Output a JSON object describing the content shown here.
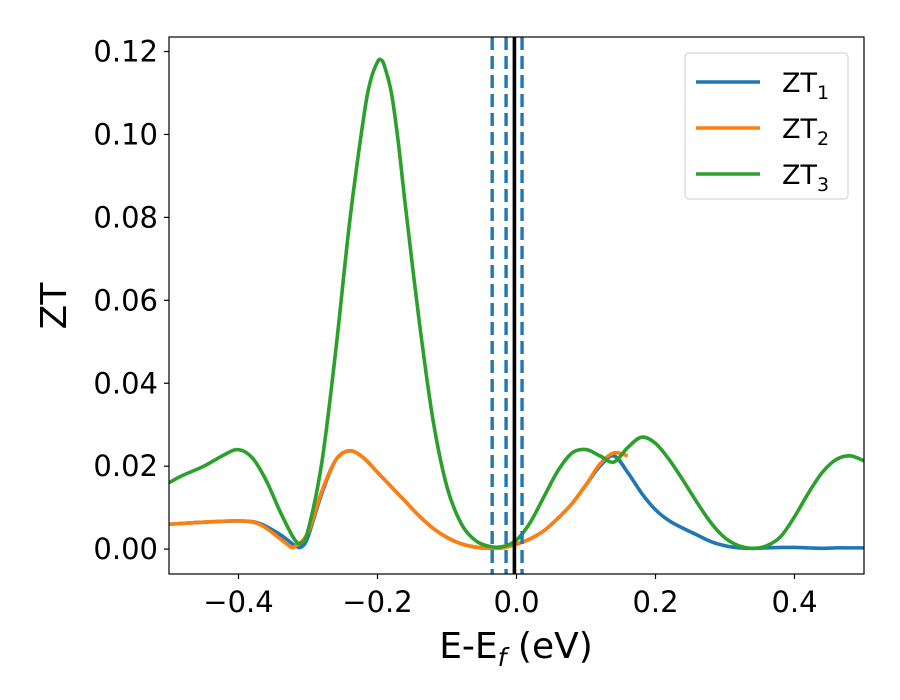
{
  "chart_data": {
    "type": "line",
    "xlabel": {
      "base": "E-E",
      "sub": "f",
      "unit": " (eV)"
    },
    "ylabel": "ZT",
    "xlim": [
      -0.5,
      0.5
    ],
    "ylim": [
      -0.006,
      0.1235
    ],
    "xticks": [
      -0.4,
      -0.2,
      0.0,
      0.2,
      0.4
    ],
    "xtick_labels": [
      "−0.4",
      "−0.2",
      "0.0",
      "0.2",
      "0.4"
    ],
    "yticks": [
      0.0,
      0.02,
      0.04,
      0.06,
      0.08,
      0.1,
      0.12
    ],
    "ytick_labels": [
      "0.00",
      "0.02",
      "0.04",
      "0.06",
      "0.08",
      "0.10",
      "0.12"
    ],
    "legend_position": "top-right",
    "grid": false,
    "series": [
      {
        "name": "ZT",
        "sub": "1",
        "color": "#1f77b4",
        "x": [
          -0.5,
          -0.45,
          -0.4,
          -0.37,
          -0.34,
          -0.32,
          -0.31,
          -0.3,
          -0.28,
          -0.26,
          -0.24,
          -0.22,
          -0.2,
          -0.18,
          -0.16,
          -0.14,
          -0.12,
          -0.1,
          -0.08,
          -0.06,
          -0.04,
          -0.02,
          0.0,
          0.02,
          0.04,
          0.06,
          0.08,
          0.1,
          0.12,
          0.14,
          0.16,
          0.18,
          0.2,
          0.22,
          0.24,
          0.26,
          0.28,
          0.3,
          0.32,
          0.34,
          0.36,
          0.38,
          0.4,
          0.42,
          0.44,
          0.46,
          0.48,
          0.5
        ],
        "y": [
          0.006,
          0.0065,
          0.0068,
          0.0062,
          0.0035,
          0.001,
          0.0005,
          0.003,
          0.0135,
          0.0215,
          0.0237,
          0.022,
          0.0185,
          0.015,
          0.0115,
          0.008,
          0.005,
          0.0028,
          0.0013,
          0.0005,
          0.0002,
          0.0003,
          0.0012,
          0.0025,
          0.0045,
          0.0075,
          0.011,
          0.0155,
          0.02,
          0.0225,
          0.0185,
          0.0135,
          0.0095,
          0.0068,
          0.005,
          0.0034,
          0.0018,
          0.0008,
          0.0003,
          0.0002,
          0.0003,
          0.0004,
          0.0004,
          0.0003,
          0.0002,
          0.0003,
          0.0003,
          0.0003
        ]
      },
      {
        "name": "ZT",
        "sub": "2",
        "color": "#ff7f0e",
        "x": [
          -0.5,
          -0.45,
          -0.4,
          -0.37,
          -0.34,
          -0.33,
          -0.32,
          -0.3,
          -0.28,
          -0.26,
          -0.24,
          -0.22,
          -0.2,
          -0.18,
          -0.16,
          -0.14,
          -0.12,
          -0.1,
          -0.08,
          -0.06,
          -0.04,
          -0.02,
          0.0,
          0.02,
          0.04,
          0.06,
          0.08,
          0.1,
          0.12,
          0.14,
          0.16
        ],
        "y": [
          0.006,
          0.0065,
          0.0068,
          0.006,
          0.0025,
          0.0012,
          0.0005,
          0.004,
          0.014,
          0.0215,
          0.0237,
          0.022,
          0.0185,
          0.015,
          0.0115,
          0.008,
          0.005,
          0.0028,
          0.0013,
          0.0005,
          0.0002,
          0.0003,
          0.0012,
          0.0025,
          0.0045,
          0.0075,
          0.011,
          0.0155,
          0.0205,
          0.0232,
          0.0225
        ]
      },
      {
        "name": "ZT",
        "sub": "3",
        "color": "#2ca02c",
        "x": [
          -0.5,
          -0.48,
          -0.45,
          -0.42,
          -0.4,
          -0.38,
          -0.36,
          -0.34,
          -0.32,
          -0.31,
          -0.3,
          -0.28,
          -0.26,
          -0.24,
          -0.22,
          -0.21,
          -0.2,
          -0.195,
          -0.19,
          -0.18,
          -0.17,
          -0.16,
          -0.14,
          -0.12,
          -0.1,
          -0.08,
          -0.06,
          -0.04,
          -0.02,
          0.0,
          0.02,
          0.04,
          0.06,
          0.08,
          0.1,
          0.12,
          0.14,
          0.16,
          0.18,
          0.2,
          0.22,
          0.24,
          0.26,
          0.28,
          0.3,
          0.32,
          0.34,
          0.36,
          0.38,
          0.4,
          0.42,
          0.44,
          0.46,
          0.48,
          0.5
        ],
        "y": [
          0.016,
          0.0178,
          0.02,
          0.0228,
          0.024,
          0.022,
          0.0165,
          0.009,
          0.0025,
          0.0015,
          0.0045,
          0.021,
          0.048,
          0.079,
          0.104,
          0.113,
          0.1175,
          0.118,
          0.1165,
          0.11,
          0.098,
          0.083,
          0.055,
          0.031,
          0.015,
          0.0063,
          0.0022,
          0.0007,
          0.0006,
          0.0022,
          0.0065,
          0.0128,
          0.019,
          0.0232,
          0.024,
          0.0225,
          0.021,
          0.0245,
          0.027,
          0.0255,
          0.0215,
          0.0165,
          0.0112,
          0.0063,
          0.0027,
          0.0008,
          0.0002,
          0.0008,
          0.003,
          0.0078,
          0.0135,
          0.0185,
          0.0216,
          0.0225,
          0.0213
        ]
      }
    ],
    "vlines": [
      {
        "x": -0.035,
        "style": "dashed",
        "color": "#1f77b4"
      },
      {
        "x": -0.015,
        "style": "dashed",
        "color": "#1f77b4"
      },
      {
        "x": 0.008,
        "style": "dashed",
        "color": "#1f77b4"
      },
      {
        "x": -0.003,
        "style": "solid",
        "color": "#000000"
      }
    ]
  }
}
